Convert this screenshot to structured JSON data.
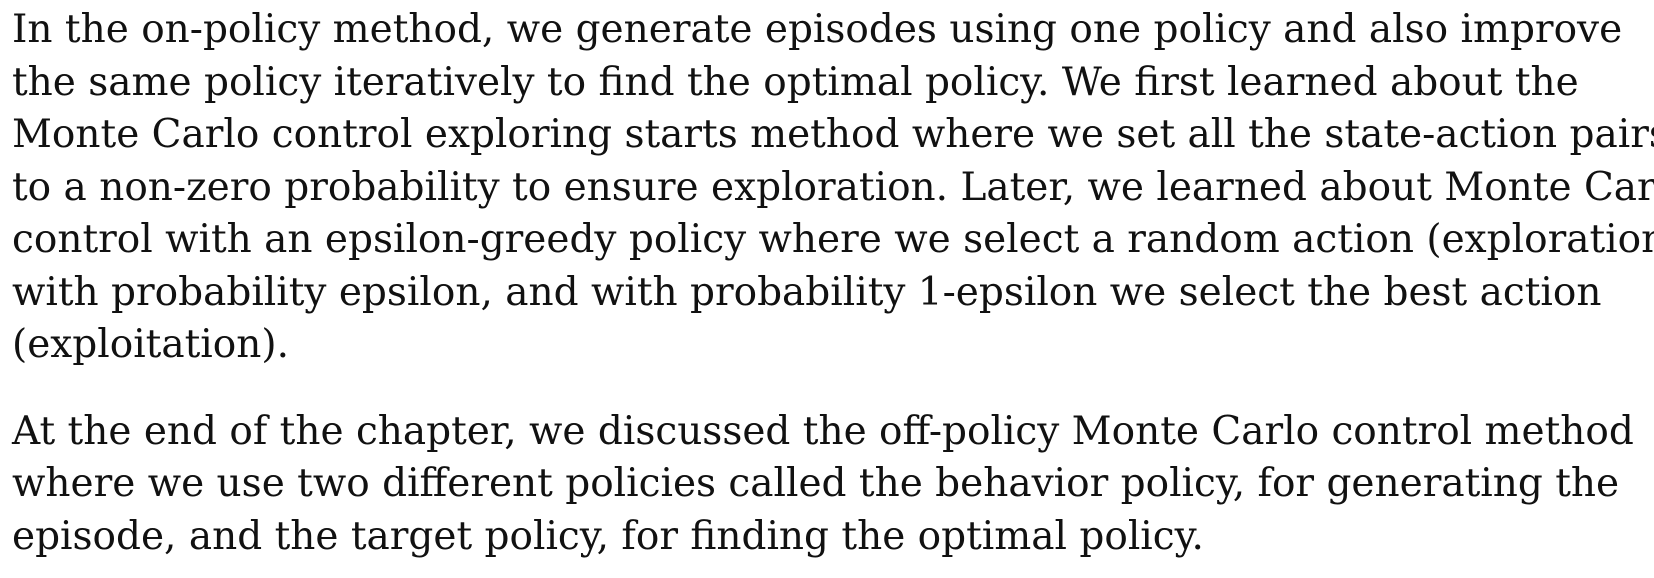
{
  "document": {
    "paragraphs": [
      {
        "lines": [
          "In the on-policy method, we generate episodes using one policy and also improve",
          "the same policy iteratively to find the optimal policy. We first learned about the",
          "Monte Carlo control exploring starts method where we set all the state-action pairs",
          "to a non-zero probability to ensure exploration. Later, we learned about Monte Carlo",
          "control with an epsilon-greedy policy where we select a random action (exploration)",
          "with probability epsilon, and with probability 1-epsilon we select the best action",
          "(exploitation)."
        ]
      },
      {
        "lines": [
          "At the end of the chapter, we discussed the off-policy Monte Carlo control method",
          "where we use two different policies called the behavior policy, for generating the",
          "episode, and the target policy, for finding the optimal policy."
        ]
      }
    ]
  }
}
